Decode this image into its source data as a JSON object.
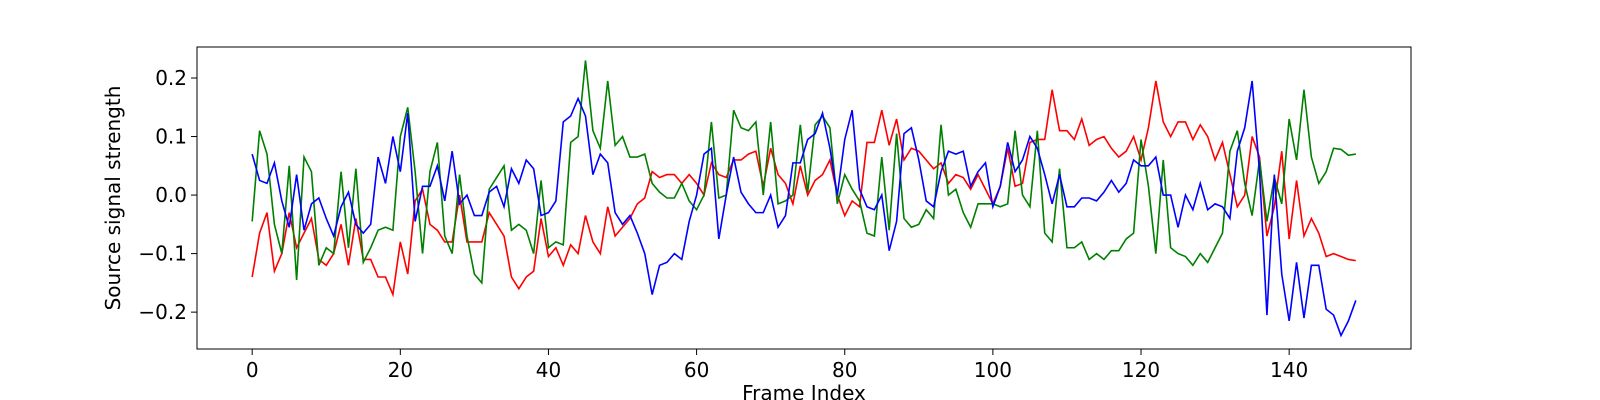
{
  "chart_data": {
    "type": "line",
    "xlabel": "Frame Index",
    "ylabel": "Source signal strength",
    "x": [
      0,
      1,
      2,
      3,
      4,
      5,
      6,
      7,
      8,
      9,
      10,
      11,
      12,
      13,
      14,
      15,
      16,
      17,
      18,
      19,
      20,
      21,
      22,
      23,
      24,
      25,
      26,
      27,
      28,
      29,
      30,
      31,
      32,
      33,
      34,
      35,
      36,
      37,
      38,
      39,
      40,
      41,
      42,
      43,
      44,
      45,
      46,
      47,
      48,
      49,
      50,
      51,
      52,
      53,
      54,
      55,
      56,
      57,
      58,
      59,
      60,
      61,
      62,
      63,
      64,
      65,
      66,
      67,
      68,
      69,
      70,
      71,
      72,
      73,
      74,
      75,
      76,
      77,
      78,
      79,
      80,
      81,
      82,
      83,
      84,
      85,
      86,
      87,
      88,
      89,
      90,
      91,
      92,
      93,
      94,
      95,
      96,
      97,
      98,
      99,
      100,
      101,
      102,
      103,
      104,
      105,
      106,
      107,
      108,
      109,
      110,
      111,
      112,
      113,
      114,
      115,
      116,
      117,
      118,
      119,
      120,
      121,
      122,
      123,
      124,
      125,
      126,
      127,
      128,
      129,
      130,
      131,
      132,
      133,
      134,
      135,
      136,
      137,
      138,
      139,
      140,
      141,
      142,
      143,
      144,
      145,
      146,
      147,
      148,
      149
    ],
    "series": [
      {
        "color": "#ff0000",
        "values": [
          -0.14,
          -0.065,
          -0.03,
          -0.13,
          -0.1,
          -0.03,
          -0.09,
          -0.065,
          -0.04,
          -0.11,
          -0.12,
          -0.1,
          -0.05,
          -0.12,
          -0.04,
          -0.11,
          -0.11,
          -0.14,
          -0.14,
          -0.17,
          -0.08,
          -0.135,
          -0.01,
          0.01,
          -0.05,
          -0.06,
          -0.08,
          -0.08,
          0.0,
          -0.08,
          -0.08,
          -0.08,
          -0.03,
          -0.05,
          -0.07,
          -0.14,
          -0.16,
          -0.14,
          -0.13,
          -0.04,
          -0.105,
          -0.09,
          -0.12,
          -0.085,
          -0.1,
          -0.035,
          -0.08,
          -0.1,
          -0.02,
          -0.07,
          -0.055,
          -0.04,
          -0.015,
          -0.005,
          0.04,
          0.03,
          0.035,
          0.035,
          0.02,
          0.035,
          0.02,
          0.0,
          0.055,
          0.035,
          0.03,
          0.06,
          0.06,
          0.07,
          0.075,
          0.015,
          0.08,
          0.035,
          0.02,
          -0.015,
          0.05,
          0.0,
          0.025,
          0.035,
          0.06,
          0.0,
          -0.035,
          -0.01,
          -0.02,
          0.09,
          0.09,
          0.145,
          0.085,
          0.13,
          0.06,
          0.08,
          0.075,
          0.06,
          0.045,
          0.055,
          0.02,
          0.035,
          0.03,
          0.01,
          0.035,
          0.01,
          -0.015,
          0.015,
          0.08,
          0.015,
          0.02,
          0.09,
          0.095,
          0.095,
          0.18,
          0.11,
          0.11,
          0.095,
          0.13,
          0.085,
          0.095,
          0.1,
          0.08,
          0.065,
          0.075,
          0.1,
          0.06,
          0.115,
          0.195,
          0.125,
          0.1,
          0.125,
          0.125,
          0.095,
          0.12,
          0.1,
          0.06,
          0.09,
          0.035,
          -0.02,
          0.0,
          0.1,
          0.065,
          -0.07,
          -0.02,
          0.075,
          -0.075,
          0.025,
          -0.07,
          -0.04,
          -0.065,
          -0.105,
          -0.1,
          -0.105,
          -0.11,
          -0.112
        ]
      },
      {
        "color": "#008000",
        "values": [
          -0.045,
          0.11,
          0.07,
          -0.05,
          -0.1,
          0.05,
          -0.145,
          0.065,
          0.04,
          -0.12,
          -0.09,
          -0.1,
          0.04,
          -0.09,
          0.045,
          -0.115,
          -0.09,
          -0.06,
          -0.055,
          -0.06,
          0.1,
          0.15,
          0.04,
          -0.1,
          0.04,
          0.09,
          -0.07,
          -0.1,
          0.035,
          -0.07,
          -0.135,
          -0.15,
          0.01,
          0.03,
          0.05,
          -0.06,
          -0.05,
          -0.06,
          -0.1,
          0.025,
          -0.09,
          -0.08,
          -0.085,
          0.09,
          0.1,
          0.23,
          0.11,
          0.08,
          0.195,
          0.085,
          0.1,
          0.065,
          0.065,
          0.07,
          0.02,
          0.005,
          -0.005,
          -0.005,
          0.02,
          -0.01,
          -0.025,
          0.0,
          0.125,
          -0.005,
          0.0,
          0.145,
          0.115,
          0.11,
          0.125,
          0.0,
          0.125,
          -0.015,
          -0.01,
          0.0,
          0.12,
          0.005,
          0.12,
          0.135,
          0.115,
          -0.015,
          0.035,
          0.01,
          -0.01,
          -0.065,
          -0.07,
          0.065,
          -0.06,
          0.105,
          -0.04,
          -0.055,
          -0.05,
          -0.025,
          -0.04,
          0.12,
          0.0,
          0.01,
          -0.03,
          -0.055,
          -0.015,
          -0.015,
          -0.015,
          -0.02,
          -0.015,
          0.11,
          0.0,
          -0.02,
          0.11,
          -0.065,
          -0.08,
          0.045,
          -0.09,
          -0.09,
          -0.08,
          -0.11,
          -0.1,
          -0.11,
          -0.095,
          -0.095,
          -0.075,
          -0.065,
          0.095,
          0.015,
          -0.1,
          0.06,
          -0.09,
          -0.1,
          -0.105,
          -0.12,
          -0.1,
          -0.115,
          -0.09,
          -0.065,
          0.075,
          0.11,
          0.02,
          -0.035,
          0.06,
          -0.045,
          0.03,
          -0.015,
          0.13,
          0.06,
          0.18,
          0.065,
          0.02,
          0.04,
          0.08,
          0.078,
          0.068,
          0.07
        ]
      },
      {
        "color": "#0000ff",
        "values": [
          0.07,
          0.025,
          0.02,
          0.055,
          -0.01,
          -0.055,
          0.035,
          -0.06,
          -0.015,
          -0.005,
          -0.04,
          -0.07,
          -0.02,
          0.005,
          -0.05,
          -0.065,
          -0.05,
          0.065,
          0.02,
          0.1,
          0.04,
          0.14,
          -0.045,
          0.015,
          0.015,
          0.05,
          -0.01,
          0.075,
          -0.015,
          0.0,
          -0.035,
          -0.035,
          0.005,
          0.015,
          -0.02,
          0.045,
          0.02,
          0.06,
          0.045,
          -0.035,
          -0.03,
          -0.01,
          0.125,
          0.135,
          0.165,
          0.135,
          0.035,
          0.07,
          0.055,
          -0.03,
          -0.05,
          -0.035,
          -0.065,
          -0.1,
          -0.17,
          -0.12,
          -0.115,
          -0.1,
          -0.11,
          -0.045,
          0.0,
          0.07,
          0.08,
          -0.075,
          0.0,
          0.065,
          0.005,
          -0.015,
          -0.03,
          -0.03,
          0.0,
          -0.055,
          -0.035,
          0.055,
          0.055,
          0.095,
          0.105,
          0.14,
          0.08,
          0.0,
          0.095,
          0.145,
          0.01,
          -0.02,
          -0.025,
          0.0,
          -0.095,
          -0.045,
          0.105,
          0.115,
          0.06,
          -0.01,
          -0.02,
          0.04,
          0.075,
          0.07,
          0.075,
          0.015,
          0.04,
          0.055,
          -0.02,
          0.015,
          0.09,
          0.04,
          0.06,
          0.1,
          0.08,
          0.035,
          -0.015,
          0.035,
          -0.02,
          -0.02,
          -0.005,
          -0.005,
          -0.01,
          0.005,
          0.025,
          0.005,
          0.02,
          0.06,
          0.05,
          0.05,
          0.065,
          0.0,
          0.0,
          -0.055,
          0.0,
          -0.025,
          0.02,
          -0.025,
          -0.015,
          -0.02,
          -0.04,
          0.075,
          0.115,
          0.195,
          0.04,
          -0.205,
          0.035,
          -0.135,
          -0.215,
          -0.115,
          -0.21,
          -0.12,
          -0.12,
          -0.195,
          -0.205,
          -0.24,
          -0.215,
          -0.18
        ]
      }
    ],
    "xlim": [
      -7.45,
      156.45
    ],
    "ylim": [
      -0.263,
      0.253
    ],
    "xticks": [
      0,
      20,
      40,
      60,
      80,
      100,
      120,
      140
    ],
    "yticks": [
      {
        "value": -0.2,
        "label": "−0.2"
      },
      {
        "value": -0.1,
        "label": "−0.1"
      },
      {
        "value": 0.0,
        "label": "0.0"
      },
      0.1,
      0.2
    ]
  }
}
